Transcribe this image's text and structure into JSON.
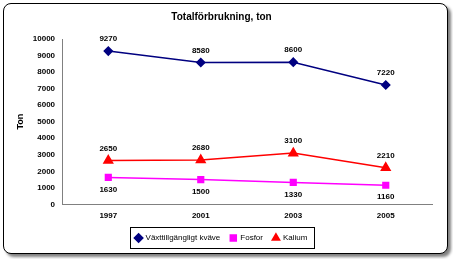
{
  "chart_data": {
    "type": "line",
    "title": "Totalförbrukning, ton",
    "y_label": "Ton",
    "categories": [
      "1997",
      "2001",
      "2003",
      "2005"
    ],
    "series": [
      {
        "name": "Växttillgängligt kväve",
        "color": "#000080",
        "marker": "diamond",
        "values": [
          9270,
          8580,
          8600,
          7220
        ]
      },
      {
        "name": "Fosfor",
        "color": "#ff00ff",
        "marker": "square",
        "values": [
          1630,
          1500,
          1330,
          1160
        ]
      },
      {
        "name": "Kalium",
        "color": "#ff0000",
        "marker": "triangle",
        "values": [
          2650,
          2680,
          3100,
          2210
        ]
      }
    ],
    "ylim": [
      0,
      10000
    ],
    "yticks": [
      0,
      1000,
      2000,
      3000,
      4000,
      5000,
      6000,
      7000,
      8000,
      9000,
      10000
    ],
    "grid": false,
    "legend": "bottom",
    "data_labels": true
  }
}
